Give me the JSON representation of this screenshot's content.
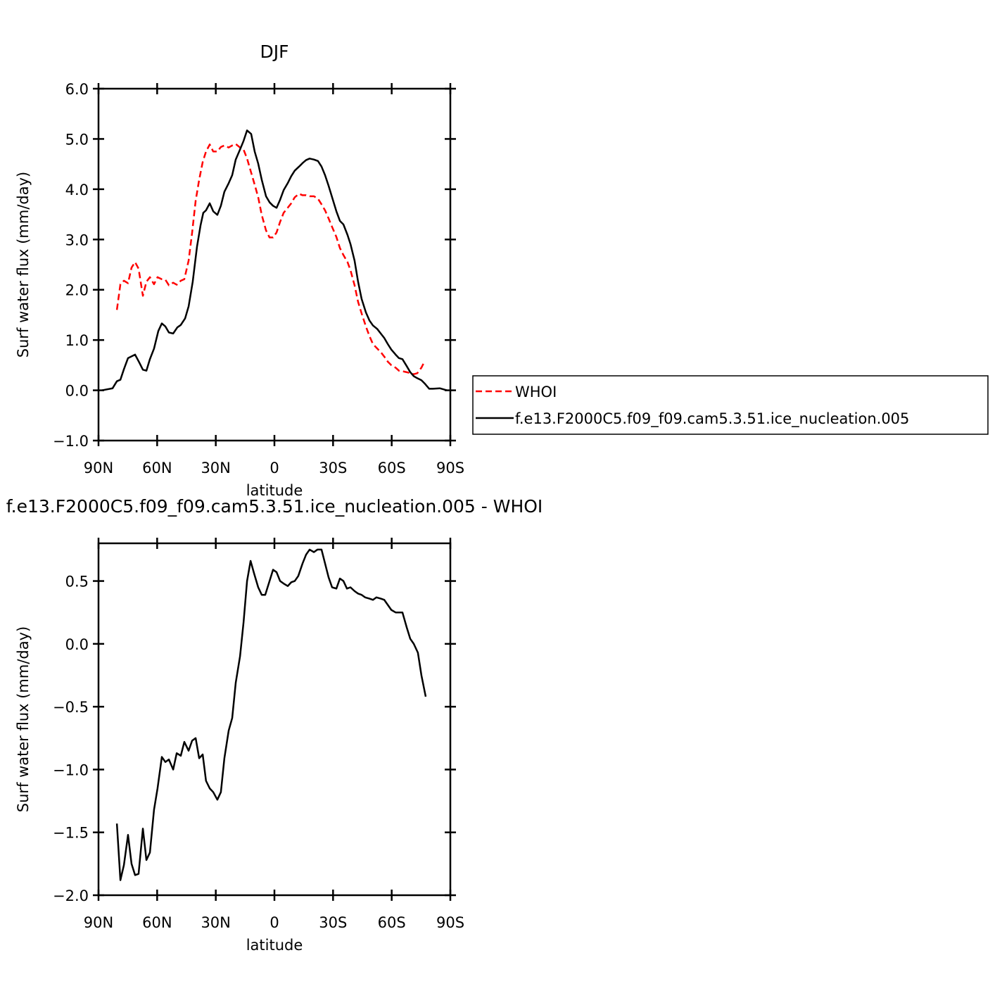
{
  "chart_data": [
    {
      "type": "line",
      "title": "DJF",
      "x_label": "latitude",
      "y_label": "Surf water flux (mm/day)",
      "xlim": [
        90,
        -90
      ],
      "xticks": [
        {
          "value": 90,
          "label": "90N"
        },
        {
          "value": 60,
          "label": "60N"
        },
        {
          "value": 30,
          "label": "30N"
        },
        0,
        {
          "value": -30,
          "label": "30S"
        },
        {
          "value": -60,
          "label": "60S"
        },
        {
          "value": -90,
          "label": "90S"
        }
      ],
      "ylim": [
        -1,
        6
      ],
      "yticks": [
        {
          "value": 6,
          "label": "6.0"
        },
        {
          "value": 5,
          "label": "5.0"
        },
        {
          "value": 4,
          "label": "4.0"
        },
        {
          "value": 3,
          "label": "3.0"
        },
        {
          "value": 2,
          "label": "2.0"
        },
        {
          "value": 1,
          "label": "1.0"
        },
        {
          "value": 0,
          "label": "0.0"
        },
        {
          "value": -1,
          "label": "−1.0"
        }
      ],
      "legend": "right",
      "series": [
        {
          "name": "WHOI",
          "color": "#ff0000",
          "line_style": "dashed",
          "x": [
            80.6,
            78.8,
            77,
            74.9,
            73.1,
            71.3,
            69.5,
            67.3,
            65.5,
            63.7,
            61.6,
            59.8,
            57.6,
            55.8,
            54,
            51.8,
            50,
            47.9,
            46.1,
            43.9,
            42.1,
            40.3,
            38.5,
            36.7,
            35,
            33.1,
            31.3,
            29.2,
            27.4,
            25.6,
            23.4,
            21.6,
            19.8,
            17.6,
            15.8,
            14,
            11.9,
            10.1,
            8.3,
            6.5,
            4.3,
            2.5,
            0.7,
            -1.1,
            -2.9,
            -4.7,
            -6.8,
            -8.6,
            -10.4,
            -12.6,
            -14.4,
            -16.2,
            -18,
            -20.2,
            -22.3,
            -24.1,
            -25.9,
            -27.7,
            -29.5,
            -31.7,
            -33.5,
            -35.3,
            -37.4,
            -38.9,
            -41,
            -42.8,
            -44.6,
            -46.8,
            -48.6,
            -50.4,
            -52.6,
            -54.4,
            -56.2,
            -58,
            -59.8,
            -62,
            -63.7,
            -65.5,
            -67.7,
            -69.5,
            -71.3,
            -73.1,
            -75.2,
            -77
          ],
          "values": [
            1.6,
            2.11,
            2.18,
            2.13,
            2.44,
            2.55,
            2.42,
            1.88,
            2.16,
            2.25,
            2.11,
            2.25,
            2.21,
            2.2,
            2.09,
            2.14,
            2.1,
            2.18,
            2.21,
            2.58,
            3.14,
            3.77,
            4.19,
            4.54,
            4.75,
            4.89,
            4.75,
            4.75,
            4.84,
            4.87,
            4.83,
            4.87,
            4.9,
            4.83,
            4.79,
            4.61,
            4.33,
            4.09,
            3.84,
            3.49,
            3.18,
            3.04,
            3.04,
            3.14,
            3.35,
            3.53,
            3.63,
            3.72,
            3.84,
            3.91,
            3.88,
            3.88,
            3.86,
            3.86,
            3.81,
            3.7,
            3.58,
            3.42,
            3.25,
            3.05,
            2.83,
            2.69,
            2.55,
            2.39,
            2.09,
            1.76,
            1.53,
            1.27,
            1.08,
            0.92,
            0.83,
            0.76,
            0.67,
            0.57,
            0.5,
            0.45,
            0.39,
            0.38,
            0.36,
            0.34,
            0.32,
            0.34,
            0.45,
            0.59
          ]
        },
        {
          "name": "f.e13.F2000C5.f09_f09.cam5.3.51.ice_nucleation.005",
          "color": "#000000",
          "line_style": "solid",
          "x": [
            88.2,
            82.8,
            80.6,
            78.8,
            77,
            74.9,
            71.3,
            69.1,
            67.3,
            65.5,
            63.7,
            61.6,
            59.4,
            57.6,
            55.8,
            54,
            51.8,
            49.7,
            47.9,
            45.7,
            43.9,
            41.8,
            39.6,
            37.8,
            36.4,
            35,
            33.1,
            31.3,
            29.2,
            27.4,
            25.6,
            23.4,
            21.6,
            19.8,
            17.6,
            15.8,
            14,
            11.9,
            10.1,
            8.3,
            6.5,
            4.3,
            2.5,
            0.7,
            -1.1,
            -2.9,
            -4.7,
            -6.8,
            -8.6,
            -10.4,
            -12.6,
            -14.4,
            -16.2,
            -18,
            -20.2,
            -22.3,
            -24.1,
            -25.9,
            -27.7,
            -29.5,
            -31.7,
            -33.5,
            -35.3,
            -37.4,
            -38.9,
            -41,
            -42.8,
            -44.6,
            -46.8,
            -48.6,
            -50.4,
            -52.6,
            -54.4,
            -56.2,
            -58,
            -59.8,
            -62,
            -63.7,
            -65.5,
            -67.7,
            -69.5,
            -71.3,
            -73.1,
            -75.2,
            -77,
            -79.2,
            -81,
            -84.6,
            -88.2
          ],
          "values": [
            0,
            0.04,
            0.18,
            0.21,
            0.42,
            0.64,
            0.71,
            0.55,
            0.41,
            0.39,
            0.62,
            0.83,
            1.18,
            1.33,
            1.27,
            1.15,
            1.13,
            1.25,
            1.3,
            1.43,
            1.67,
            2.16,
            2.86,
            3.28,
            3.53,
            3.58,
            3.72,
            3.56,
            3.49,
            3.67,
            3.95,
            4.12,
            4.28,
            4.59,
            4.79,
            4.96,
            5.17,
            5.1,
            4.75,
            4.51,
            4.19,
            3.86,
            3.74,
            3.67,
            3.63,
            3.79,
            3.98,
            4.12,
            4.26,
            4.37,
            4.45,
            4.52,
            4.58,
            4.61,
            4.59,
            4.56,
            4.45,
            4.28,
            4.07,
            3.84,
            3.56,
            3.37,
            3.3,
            3.09,
            2.91,
            2.58,
            2.16,
            1.82,
            1.55,
            1.39,
            1.29,
            1.22,
            1.13,
            1.04,
            0.92,
            0.81,
            0.71,
            0.64,
            0.62,
            0.48,
            0.36,
            0.28,
            0.24,
            0.2,
            0.13,
            0.03,
            0.03,
            0.04,
            0
          ]
        }
      ]
    },
    {
      "type": "line",
      "title": "f.e13.F2000C5.f09_f09.cam5.3.51.ice_nucleation.005 - WHOI",
      "x_label": "latitude",
      "y_label": "Surf water flux (mm/day)",
      "xlim": [
        90,
        -90
      ],
      "xticks": [
        {
          "value": 90,
          "label": "90N"
        },
        {
          "value": 60,
          "label": "60N"
        },
        {
          "value": 30,
          "label": "30N"
        },
        0,
        {
          "value": -30,
          "label": "30S"
        },
        {
          "value": -60,
          "label": "60S"
        },
        {
          "value": -90,
          "label": "90S"
        }
      ],
      "ylim": [
        -2,
        0.8
      ],
      "yticks": [
        0.5,
        {
          "value": 0,
          "label": "0.0"
        },
        {
          "value": -0.5,
          "label": "−0.5"
        },
        {
          "value": -1,
          "label": "−1.0"
        },
        {
          "value": -1.5,
          "label": "−1.5"
        },
        {
          "value": -2,
          "label": "−2.0"
        }
      ],
      "series": [
        {
          "color": "#000000",
          "line_style": "solid",
          "x": [
            80.6,
            78.8,
            77,
            74.9,
            73.1,
            71.3,
            69.5,
            67.3,
            65.5,
            63.7,
            61.6,
            59.8,
            57.6,
            55.8,
            54,
            51.8,
            50,
            47.9,
            46.1,
            43.9,
            42.1,
            40.3,
            38.5,
            36.7,
            35,
            33.1,
            31.3,
            29.2,
            27.4,
            25.6,
            23.4,
            21.6,
            19.8,
            17.6,
            15.8,
            14,
            12.2,
            10.4,
            8.3,
            6.5,
            4.7,
            2.5,
            0.7,
            -1.1,
            -2.9,
            -4.7,
            -6.8,
            -8.6,
            -10.4,
            -12.2,
            -14.4,
            -16.2,
            -18,
            -20.2,
            -22,
            -24.1,
            -25.9,
            -27.7,
            -29.5,
            -31.7,
            -33.5,
            -35.3,
            -37.1,
            -38.9,
            -41,
            -42.8,
            -44.6,
            -46.4,
            -48.6,
            -50.4,
            -52.2,
            -54.4,
            -56.2,
            -58,
            -59.8,
            -62,
            -63.7,
            -65.5,
            -67.7,
            -69.5,
            -71.3,
            -73.4,
            -75.2,
            -77.4
          ],
          "values": [
            -1.43,
            -1.88,
            -1.76,
            -1.52,
            -1.75,
            -1.84,
            -1.83,
            -1.47,
            -1.72,
            -1.66,
            -1.32,
            -1.15,
            -0.9,
            -0.94,
            -0.92,
            -1,
            -0.87,
            -0.89,
            -0.78,
            -0.85,
            -0.77,
            -0.75,
            -0.91,
            -0.88,
            -1.09,
            -1.15,
            -1.18,
            -1.24,
            -1.18,
            -0.91,
            -0.69,
            -0.59,
            -0.31,
            -0.1,
            0.17,
            0.5,
            0.66,
            0.56,
            0.45,
            0.39,
            0.39,
            0.5,
            0.59,
            0.57,
            0.5,
            0.48,
            0.46,
            0.49,
            0.5,
            0.54,
            0.64,
            0.71,
            0.75,
            0.73,
            0.75,
            0.75,
            0.64,
            0.53,
            0.45,
            0.44,
            0.52,
            0.5,
            0.44,
            0.45,
            0.42,
            0.4,
            0.39,
            0.37,
            0.36,
            0.35,
            0.37,
            0.36,
            0.35,
            0.31,
            0.27,
            0.25,
            0.25,
            0.25,
            0.13,
            0.04,
            0,
            -0.07,
            -0.25,
            -0.42
          ]
        }
      ]
    }
  ]
}
